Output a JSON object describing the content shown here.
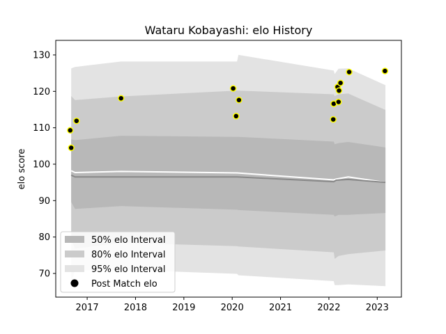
{
  "chart_data": {
    "type": "area",
    "title": "Wataru Kobayashi: elo History",
    "xlabel": "",
    "ylabel": "elo score",
    "xlim": [
      2016.35,
      2023.5
    ],
    "ylim": [
      63.5,
      134.0
    ],
    "x_ticks": [
      2017,
      2018,
      2019,
      2020,
      2021,
      2022,
      2023
    ],
    "y_ticks": [
      70,
      80,
      90,
      100,
      110,
      120,
      130
    ],
    "grid": false,
    "legend_position": "lower-left",
    "band_x": [
      2016.67,
      2016.75,
      2017.7,
      2020.1,
      2020.13,
      2022.1,
      2022.12,
      2022.2,
      2022.4,
      2023.17
    ],
    "bands": [
      {
        "name": "95% elo Interval",
        "color": "#e3e3e3",
        "upper": [
          126.3,
          126.7,
          128.2,
          128.2,
          130.0,
          125.7,
          124.8,
          126.2,
          126.3,
          121.7
        ],
        "lower": [
          67.2,
          70.9,
          71.0,
          69.9,
          69.5,
          67.9,
          66.8,
          66.8,
          67.0,
          66.5
        ]
      },
      {
        "name": "80% elo Interval",
        "color": "#cbcbcb",
        "upper": [
          118.7,
          117.6,
          118.6,
          120.2,
          120.2,
          119.2,
          118.7,
          119.2,
          119.4,
          114.9
        ],
        "lower": [
          79.3,
          76.8,
          78.4,
          77.5,
          77.4,
          75.8,
          74.0,
          74.8,
          75.3,
          76.3
        ]
      },
      {
        "name": "50% elo Interval",
        "color": "#b8b8b8",
        "upper": [
          106.8,
          106.6,
          107.8,
          107.5,
          107.5,
          106.2,
          105.5,
          105.8,
          106.1,
          104.6
        ],
        "lower": [
          89.6,
          87.7,
          88.5,
          87.5,
          87.4,
          86.1,
          85.6,
          86.1,
          86.1,
          86.6
        ]
      }
    ],
    "series": [
      {
        "color": "#ffffff",
        "x": [
          2016.67,
          2016.75,
          2017.7,
          2020.1,
          2022.1,
          2022.15,
          2022.4,
          2023.17
        ],
        "values": [
          98.2,
          97.7,
          98.0,
          97.6,
          95.7,
          95.9,
          96.5,
          95.0
        ]
      },
      {
        "color": "#888888",
        "x": [
          2016.67,
          2016.75,
          2017.7,
          2020.1,
          2022.1,
          2022.15,
          2022.4,
          2023.17
        ],
        "values": [
          97.0,
          96.5,
          96.5,
          96.5,
          95.2,
          95.6,
          95.8,
          95.0
        ]
      }
    ],
    "points": {
      "name": "Post Match elo",
      "fill": "#000000",
      "edge": "#ffff00",
      "x": [
        2016.65,
        2016.67,
        2016.78,
        2017.7,
        2020.02,
        2020.08,
        2020.14,
        2022.09,
        2022.1,
        2022.18,
        2022.2,
        2022.21,
        2022.24,
        2022.42,
        2023.16
      ],
      "y": [
        109.3,
        104.5,
        111.9,
        118.1,
        120.8,
        113.2,
        117.6,
        112.3,
        116.6,
        121.2,
        117.1,
        120.2,
        122.3,
        125.3,
        125.6
      ]
    },
    "legend": [
      {
        "label": "50% elo Interval",
        "kind": "patch",
        "color": "#b8b8b8"
      },
      {
        "label": "80% elo Interval",
        "kind": "patch",
        "color": "#cbcbcb"
      },
      {
        "label": "95% elo Interval",
        "kind": "patch",
        "color": "#e3e3e3"
      },
      {
        "label": "Post Match elo",
        "kind": "marker",
        "color": "#000000"
      }
    ]
  }
}
